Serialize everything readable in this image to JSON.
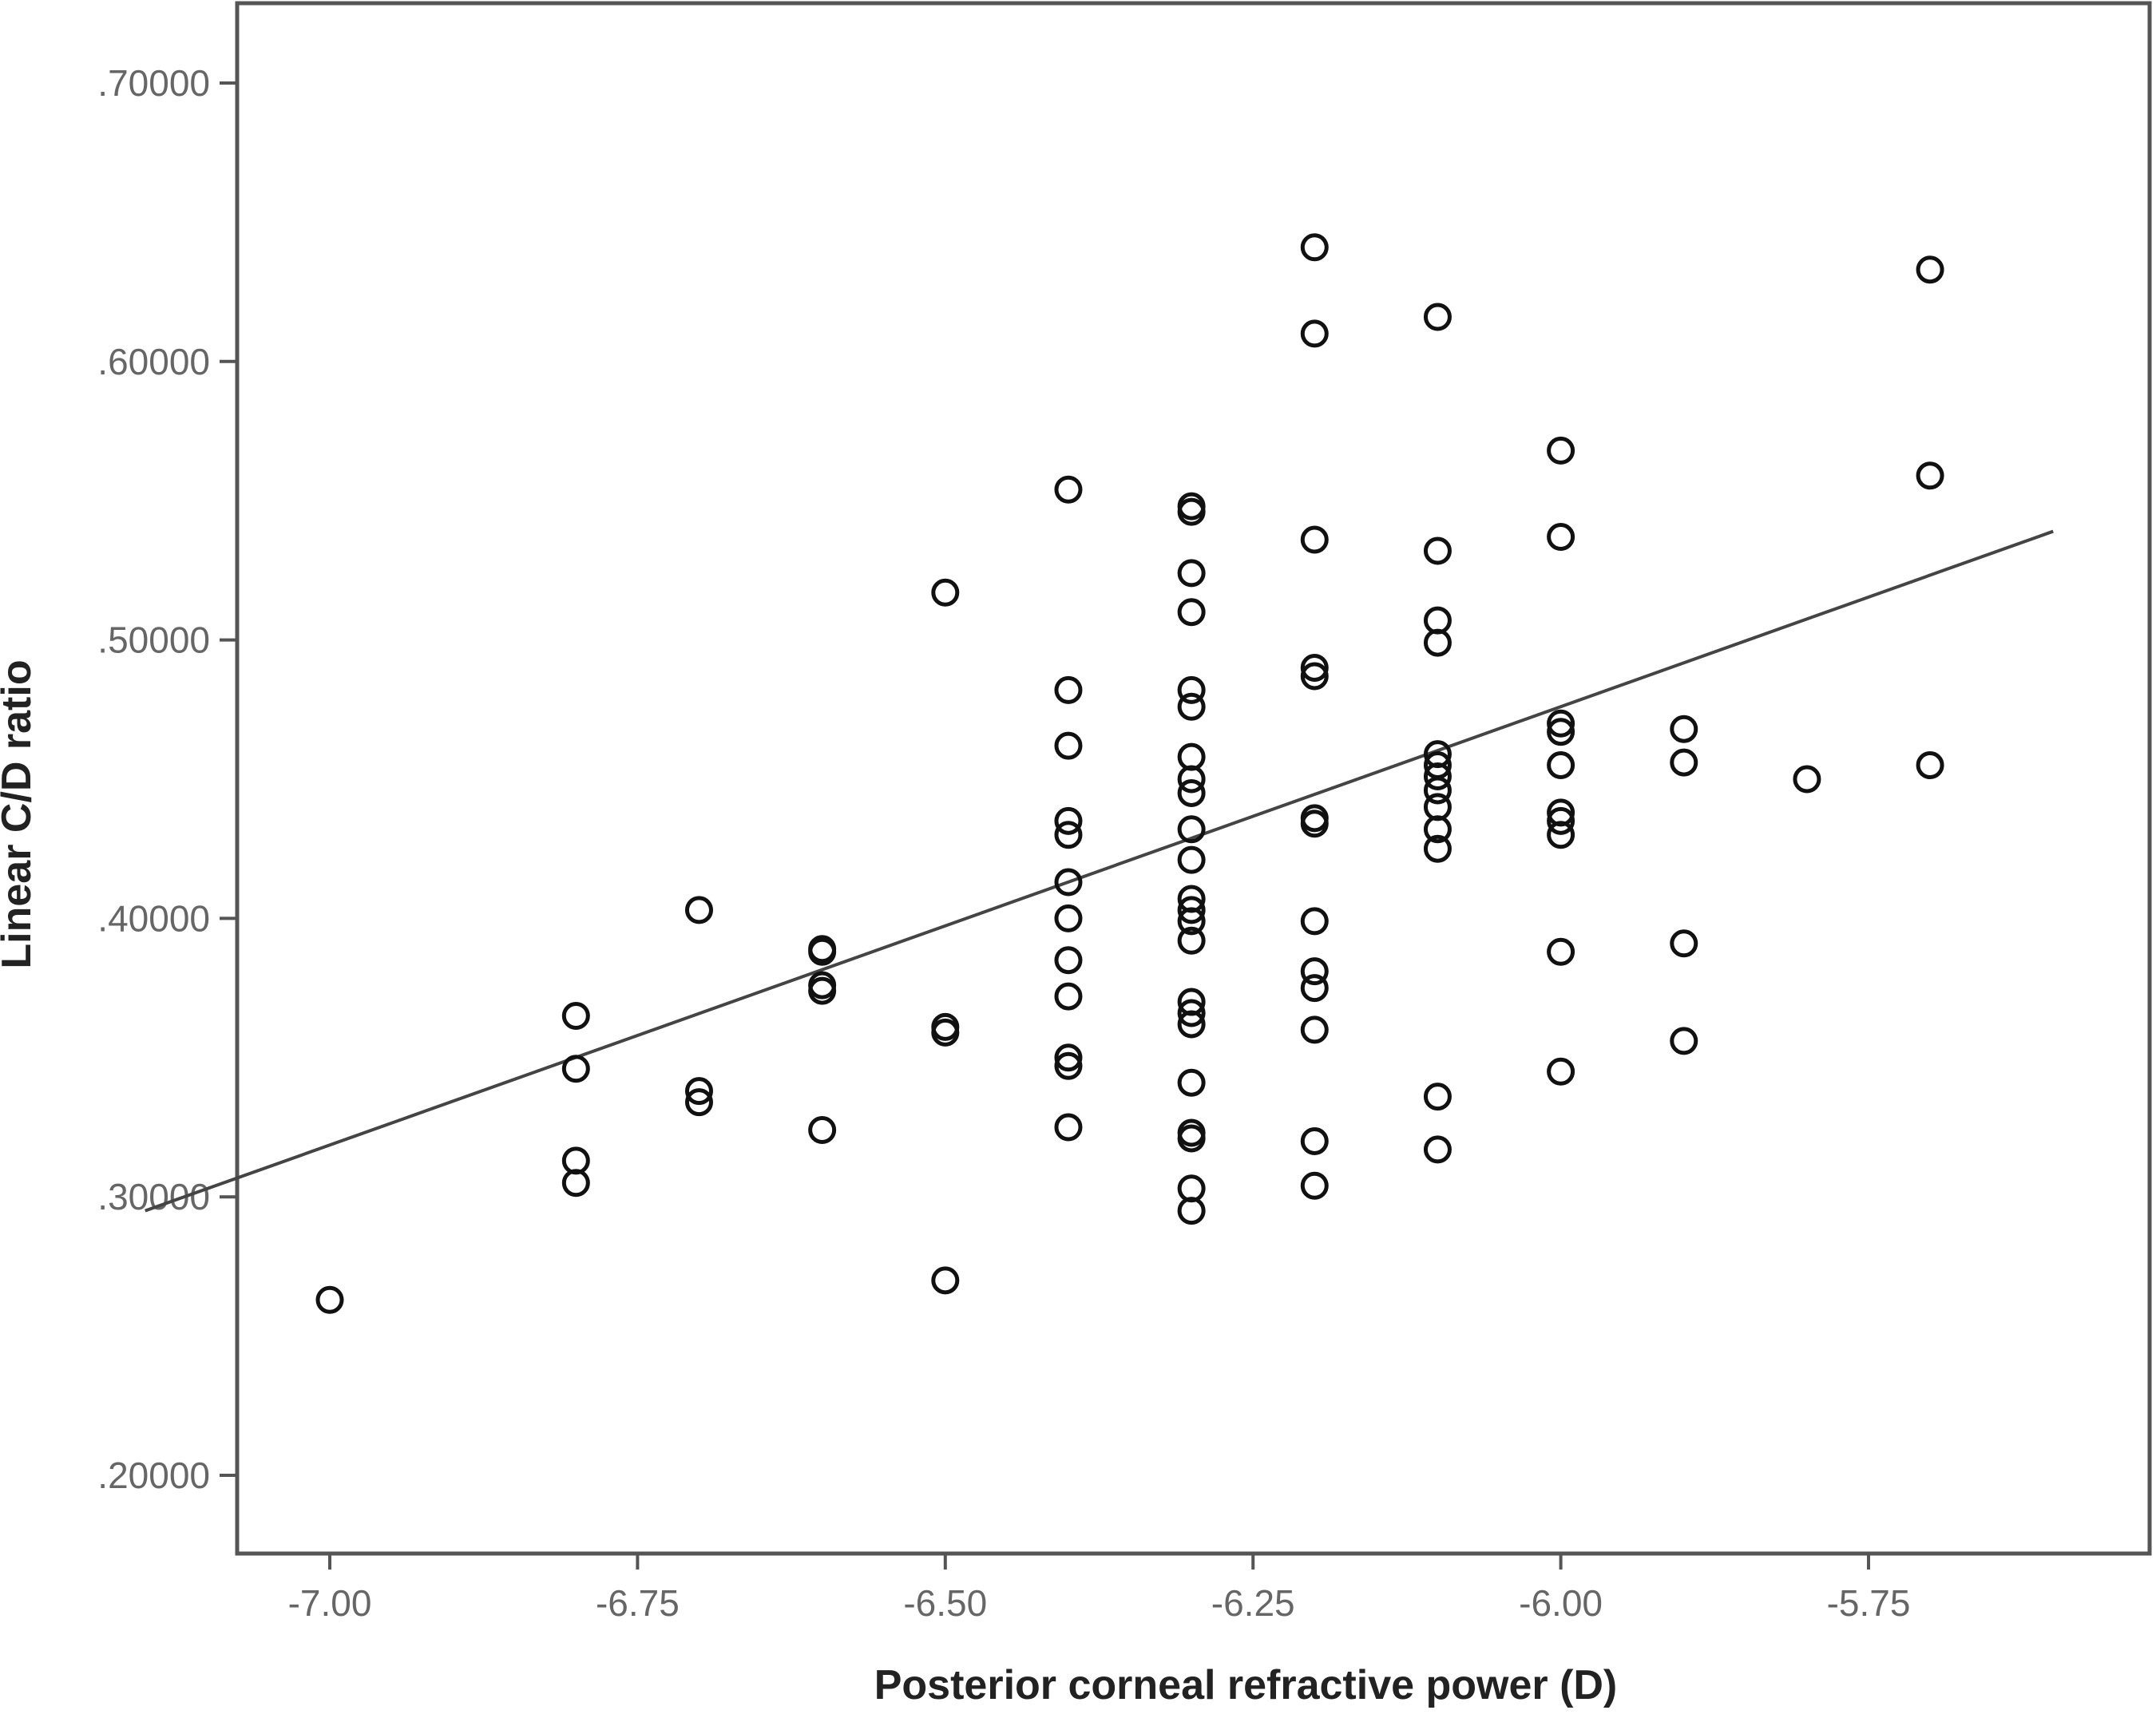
{
  "chart_data": {
    "type": "scatter",
    "title": "",
    "xlabel": "Posterior corneal refractive power (D)",
    "ylabel": "Linear C/D ratio",
    "xlim": [
      -7.15,
      -5.6
    ],
    "ylim": [
      0.175,
      0.73
    ],
    "x_ticks": [
      -7.0,
      -6.75,
      -6.5,
      -6.25,
      -6.0,
      -5.75
    ],
    "x_tick_labels": [
      "-7.00",
      "-6.75",
      "-6.50",
      "-6.25",
      "-6.00",
      "-5.75"
    ],
    "y_ticks": [
      0.2,
      0.3,
      0.4,
      0.5,
      0.6,
      0.7
    ],
    "y_tick_labels": [
      ".20000",
      ".30000",
      ".40000",
      ".50000",
      ".60000",
      ".70000"
    ],
    "grid": false,
    "legend": "none",
    "colors": {
      "axis": "#555555",
      "marker": "#111111",
      "fit_line": "#444444"
    },
    "fit_line": {
      "x": [
        -7.15,
        -5.6
      ],
      "y": [
        0.295,
        0.539
      ]
    },
    "series": [
      {
        "marker": "open-circle",
        "points": [
          {
            "x": -7.0,
            "y": 0.263
          },
          {
            "x": -6.8,
            "y": 0.365
          },
          {
            "x": -6.8,
            "y": 0.346
          },
          {
            "x": -6.8,
            "y": 0.313
          },
          {
            "x": -6.8,
            "y": 0.305
          },
          {
            "x": -6.7,
            "y": 0.403
          },
          {
            "x": -6.7,
            "y": 0.338
          },
          {
            "x": -6.7,
            "y": 0.334
          },
          {
            "x": -6.6,
            "y": 0.389
          },
          {
            "x": -6.6,
            "y": 0.388
          },
          {
            "x": -6.6,
            "y": 0.376
          },
          {
            "x": -6.6,
            "y": 0.374
          },
          {
            "x": -6.6,
            "y": 0.324
          },
          {
            "x": -6.5,
            "y": 0.517
          },
          {
            "x": -6.5,
            "y": 0.361
          },
          {
            "x": -6.5,
            "y": 0.359
          },
          {
            "x": -6.5,
            "y": 0.27
          },
          {
            "x": -6.4,
            "y": 0.554
          },
          {
            "x": -6.4,
            "y": 0.482
          },
          {
            "x": -6.4,
            "y": 0.462
          },
          {
            "x": -6.4,
            "y": 0.435
          },
          {
            "x": -6.4,
            "y": 0.43
          },
          {
            "x": -6.4,
            "y": 0.413
          },
          {
            "x": -6.4,
            "y": 0.4
          },
          {
            "x": -6.4,
            "y": 0.385
          },
          {
            "x": -6.4,
            "y": 0.372
          },
          {
            "x": -6.4,
            "y": 0.35
          },
          {
            "x": -6.4,
            "y": 0.347
          },
          {
            "x": -6.4,
            "y": 0.325
          },
          {
            "x": -6.3,
            "y": 0.548
          },
          {
            "x": -6.3,
            "y": 0.546
          },
          {
            "x": -6.3,
            "y": 0.524
          },
          {
            "x": -6.3,
            "y": 0.51
          },
          {
            "x": -6.3,
            "y": 0.482
          },
          {
            "x": -6.3,
            "y": 0.476
          },
          {
            "x": -6.3,
            "y": 0.458
          },
          {
            "x": -6.3,
            "y": 0.45
          },
          {
            "x": -6.3,
            "y": 0.445
          },
          {
            "x": -6.3,
            "y": 0.432
          },
          {
            "x": -6.3,
            "y": 0.421
          },
          {
            "x": -6.3,
            "y": 0.407
          },
          {
            "x": -6.3,
            "y": 0.403
          },
          {
            "x": -6.3,
            "y": 0.399
          },
          {
            "x": -6.3,
            "y": 0.392
          },
          {
            "x": -6.3,
            "y": 0.37
          },
          {
            "x": -6.3,
            "y": 0.366
          },
          {
            "x": -6.3,
            "y": 0.362
          },
          {
            "x": -6.3,
            "y": 0.341
          },
          {
            "x": -6.3,
            "y": 0.323
          },
          {
            "x": -6.3,
            "y": 0.321
          },
          {
            "x": -6.3,
            "y": 0.303
          },
          {
            "x": -6.3,
            "y": 0.295
          },
          {
            "x": -6.2,
            "y": 0.641
          },
          {
            "x": -6.2,
            "y": 0.61
          },
          {
            "x": -6.2,
            "y": 0.536
          },
          {
            "x": -6.2,
            "y": 0.49
          },
          {
            "x": -6.2,
            "y": 0.487
          },
          {
            "x": -6.2,
            "y": 0.436
          },
          {
            "x": -6.2,
            "y": 0.434
          },
          {
            "x": -6.2,
            "y": 0.399
          },
          {
            "x": -6.2,
            "y": 0.381
          },
          {
            "x": -6.2,
            "y": 0.375
          },
          {
            "x": -6.2,
            "y": 0.36
          },
          {
            "x": -6.2,
            "y": 0.32
          },
          {
            "x": -6.2,
            "y": 0.304
          },
          {
            "x": -6.1,
            "y": 0.616
          },
          {
            "x": -6.1,
            "y": 0.532
          },
          {
            "x": -6.1,
            "y": 0.507
          },
          {
            "x": -6.1,
            "y": 0.499
          },
          {
            "x": -6.1,
            "y": 0.459
          },
          {
            "x": -6.1,
            "y": 0.455
          },
          {
            "x": -6.1,
            "y": 0.451
          },
          {
            "x": -6.1,
            "y": 0.446
          },
          {
            "x": -6.1,
            "y": 0.44
          },
          {
            "x": -6.1,
            "y": 0.432
          },
          {
            "x": -6.1,
            "y": 0.425
          },
          {
            "x": -6.1,
            "y": 0.336
          },
          {
            "x": -6.1,
            "y": 0.317
          },
          {
            "x": -6.0,
            "y": 0.568
          },
          {
            "x": -6.0,
            "y": 0.537
          },
          {
            "x": -6.0,
            "y": 0.47
          },
          {
            "x": -6.0,
            "y": 0.467
          },
          {
            "x": -6.0,
            "y": 0.455
          },
          {
            "x": -6.0,
            "y": 0.438
          },
          {
            "x": -6.0,
            "y": 0.435
          },
          {
            "x": -6.0,
            "y": 0.43
          },
          {
            "x": -6.0,
            "y": 0.388
          },
          {
            "x": -6.0,
            "y": 0.345
          },
          {
            "x": -5.9,
            "y": 0.468
          },
          {
            "x": -5.9,
            "y": 0.456
          },
          {
            "x": -5.9,
            "y": 0.391
          },
          {
            "x": -5.9,
            "y": 0.356
          },
          {
            "x": -5.8,
            "y": 0.45
          },
          {
            "x": -5.7,
            "y": 0.633
          },
          {
            "x": -5.7,
            "y": 0.559
          },
          {
            "x": -5.7,
            "y": 0.455
          }
        ]
      }
    ]
  }
}
